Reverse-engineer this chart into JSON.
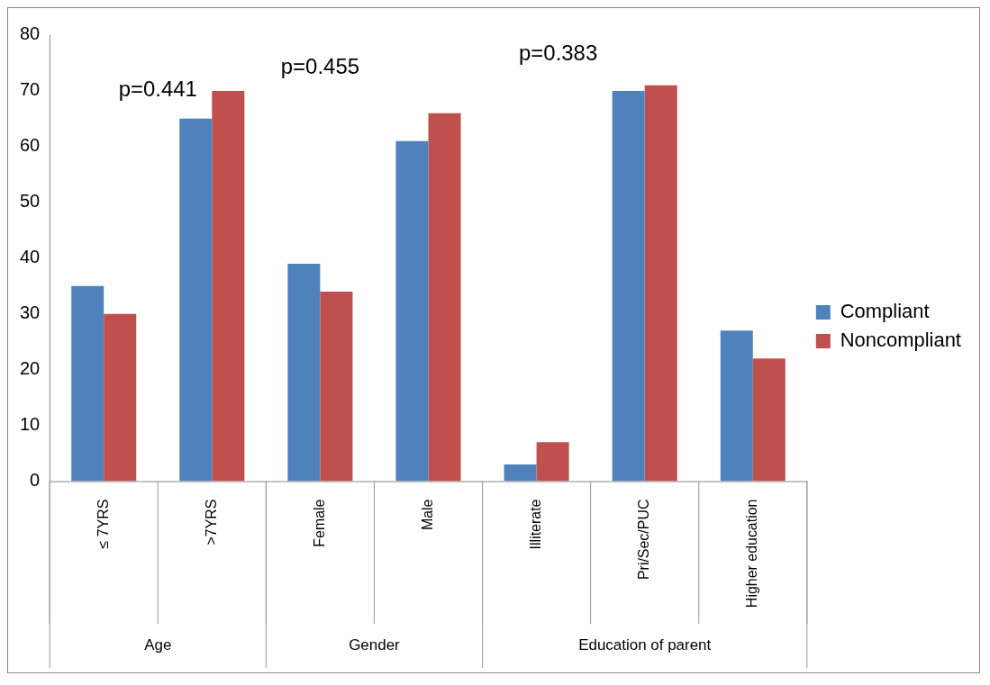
{
  "chart_data": {
    "type": "bar",
    "categories": [
      "≤ 7YRS",
      ">7YRS",
      "Female",
      "Male",
      "Illiterate",
      "Pri/Sec/PUC",
      "Higher education"
    ],
    "series": [
      {
        "name": "Compliant",
        "color": "#4f81bd",
        "values": [
          35,
          65,
          39,
          61,
          3,
          70,
          27
        ]
      },
      {
        "name": "Noncompliant",
        "color": "#c0504d",
        "values": [
          30,
          70,
          34,
          66,
          7,
          71,
          22
        ]
      }
    ],
    "ylim": [
      0,
      80
    ],
    "yticks": [
      0,
      10,
      20,
      30,
      40,
      50,
      60,
      70,
      80
    ],
    "grid": false,
    "legend": "right",
    "annotations": [
      "p=0.441",
      "p=0.455",
      "p=0.383",
      "Age",
      "Gender",
      "Education of parent"
    ]
  }
}
